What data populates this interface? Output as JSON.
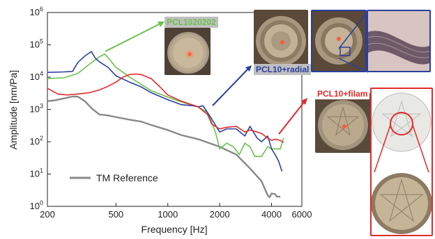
{
  "chart_data": {
    "type": "line",
    "title": "",
    "xlabel": "Frequency [Hz]",
    "ylabel": "Amplitude [nm/Pa]",
    "x_scale": "log",
    "y_scale": "log",
    "xlim": [
      200,
      6000
    ],
    "ylim": [
      1,
      1000000
    ],
    "x_ticks": [
      200,
      500,
      1000,
      2000,
      4000,
      6000
    ],
    "x_tick_labels": [
      "200",
      "500",
      "1000",
      "2000",
      "4000",
      "6000"
    ],
    "y_ticks": [
      1,
      10,
      100,
      1000,
      10000,
      100000,
      1000000
    ],
    "y_tick_labels": [
      "10^0",
      "10^1",
      "10^2",
      "10^3",
      "10^4",
      "10^5",
      "10^6"
    ],
    "grid": false,
    "legend_position": "bottom-left",
    "series": [
      {
        "name": "TM Reference",
        "color": "#888888",
        "x": [
          200,
          220,
          250,
          280,
          300,
          330,
          360,
          400,
          450,
          500,
          600,
          700,
          800,
          1000,
          1200,
          1500,
          2000,
          2500,
          3000,
          3500,
          3800,
          3900,
          4000,
          4200,
          4300,
          4500
        ],
        "y": [
          1800,
          1900,
          2200,
          2500,
          2500,
          1800,
          1100,
          700,
          650,
          580,
          480,
          420,
          330,
          230,
          160,
          120,
          70,
          40,
          15,
          6,
          2.2,
          1.9,
          2.5,
          2.4,
          2.0,
          2.0
        ]
      },
      {
        "name": "PCL1020202",
        "color": "#6cc04a",
        "x": [
          200,
          250,
          300,
          350,
          400,
          430,
          460,
          500,
          550,
          600,
          700,
          800,
          1000,
          1200,
          1500,
          1700,
          1800,
          1900,
          2000,
          2200,
          2400,
          2600,
          2800,
          3000,
          3200,
          3500,
          3800,
          4000,
          4300,
          4500,
          4700
        ],
        "y": [
          9000,
          9500,
          13000,
          25000,
          42000,
          52000,
          35000,
          20000,
          14000,
          10000,
          6000,
          3800,
          2400,
          1700,
          1200,
          800,
          400,
          180,
          60,
          90,
          70,
          40,
          90,
          70,
          35,
          35,
          70,
          60,
          60,
          60,
          130
        ]
      },
      {
        "name": "PCL10+radial",
        "color": "#2b3f9e",
        "x": [
          200,
          250,
          280,
          300,
          330,
          360,
          380,
          400,
          450,
          500,
          600,
          700,
          800,
          1000,
          1200,
          1400,
          1500,
          1600,
          1700,
          1800,
          2000,
          2200,
          2500,
          2800,
          3000,
          3300,
          3500,
          3800,
          4000,
          4200,
          4400,
          4600
        ],
        "y": [
          14000,
          14500,
          15000,
          28000,
          45000,
          62000,
          38000,
          30000,
          20000,
          11000,
          7000,
          5000,
          3300,
          2000,
          1400,
          1300,
          1200,
          1300,
          800,
          500,
          200,
          250,
          250,
          150,
          300,
          130,
          100,
          150,
          60,
          40,
          25,
          12
        ]
      },
      {
        "name": "PCL10+filam",
        "color": "#e02a2a",
        "x": [
          200,
          230,
          260,
          300,
          350,
          400,
          450,
          500,
          550,
          600,
          650,
          700,
          800,
          900,
          1000,
          1200,
          1500,
          1700,
          1800,
          2000,
          2200,
          2500,
          2800,
          3000,
          3300,
          3500,
          3800,
          4000,
          4200,
          4500,
          4700
        ],
        "y": [
          4500,
          3000,
          2800,
          3000,
          3300,
          4000,
          5200,
          7000,
          10000,
          12000,
          12500,
          12000,
          9000,
          5000,
          2800,
          1800,
          1200,
          700,
          350,
          250,
          280,
          300,
          200,
          230,
          200,
          180,
          130,
          110,
          120,
          110,
          95
        ]
      }
    ],
    "annotations": [
      {
        "text": "PCL1020202",
        "color": "#6cc04a"
      },
      {
        "text": "PCL10+radial",
        "color": "#2b3f9e"
      },
      {
        "text": "PCL10+filam",
        "color": "#e02a2a"
      }
    ]
  },
  "legend": {
    "label": "TM Reference",
    "color": "#888888"
  },
  "callouts": {
    "green_label": "PCL1020202",
    "blue_label": "PCL10+radial",
    "red_label": "PCL10+filam"
  },
  "colors": {
    "green": "#6cc04a",
    "blue": "#2b3f9e",
    "red": "#e02a2a",
    "gray": "#888888",
    "label_bg": "#bfbfbf"
  }
}
